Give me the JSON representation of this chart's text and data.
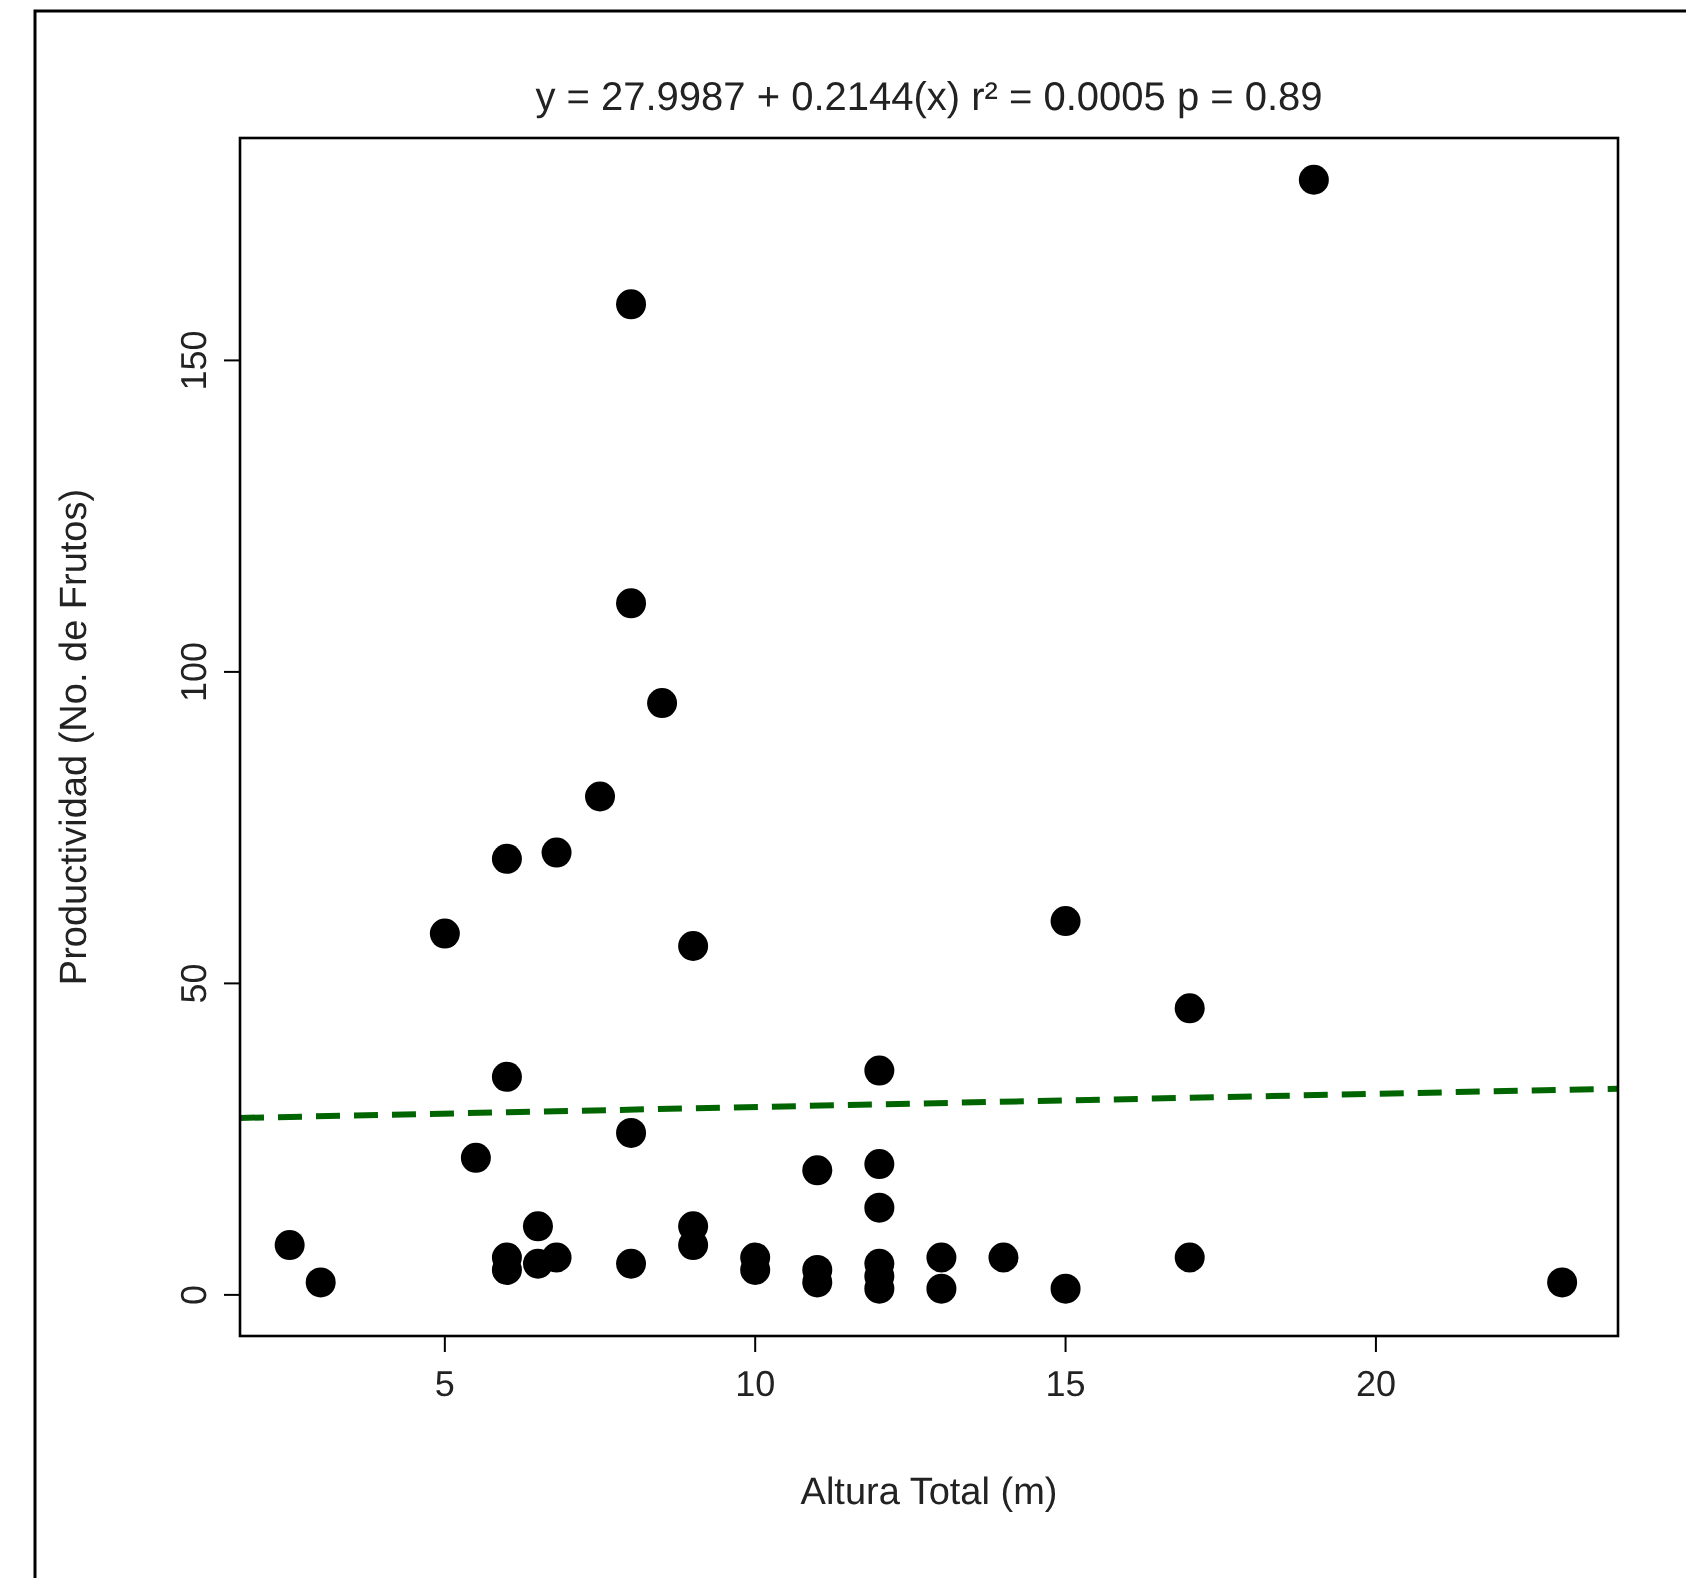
{
  "chart_data": {
    "type": "scatter",
    "title": "y =  27.9987 + 0.2144(x) r² = 0.0005  p = 0.89",
    "xlabel": "Altura Total (m)",
    "ylabel": "Productividad (No. de Frutos)",
    "xlim": [
      1.7,
      23.9
    ],
    "ylim": [
      -6.6,
      185.7
    ],
    "xticks": [
      5,
      10,
      15,
      20
    ],
    "yticks": [
      0,
      50,
      100,
      150
    ],
    "grid": false,
    "marker": "circle",
    "series": [
      {
        "color": "#000000",
        "x": [
          19,
          8,
          8,
          8.5,
          7.5,
          6,
          6.8,
          5,
          9,
          15,
          17,
          6,
          12,
          2.5,
          3,
          5.5,
          8,
          6,
          6,
          6.5,
          6.5,
          6.8,
          8,
          9,
          9,
          10,
          10,
          11,
          11,
          11,
          12,
          12,
          12,
          12,
          12,
          13,
          13,
          14,
          15,
          17,
          23
        ],
        "values": [
          179,
          159,
          111,
          95,
          80,
          70,
          71,
          58,
          56,
          60,
          46,
          35,
          36,
          8,
          2,
          22,
          26,
          6,
          4,
          11,
          5,
          6,
          5,
          11,
          8,
          6,
          4,
          20,
          4,
          2,
          21,
          14,
          5,
          3,
          1,
          6,
          1,
          6,
          1,
          6,
          2
        ]
      },
      {
        "type": "line",
        "color": "#006400",
        "line_style": "dashed",
        "marker": "none",
        "x": [
          1.7,
          23.9
        ],
        "values": [
          28.4,
          33.1
        ]
      }
    ]
  }
}
